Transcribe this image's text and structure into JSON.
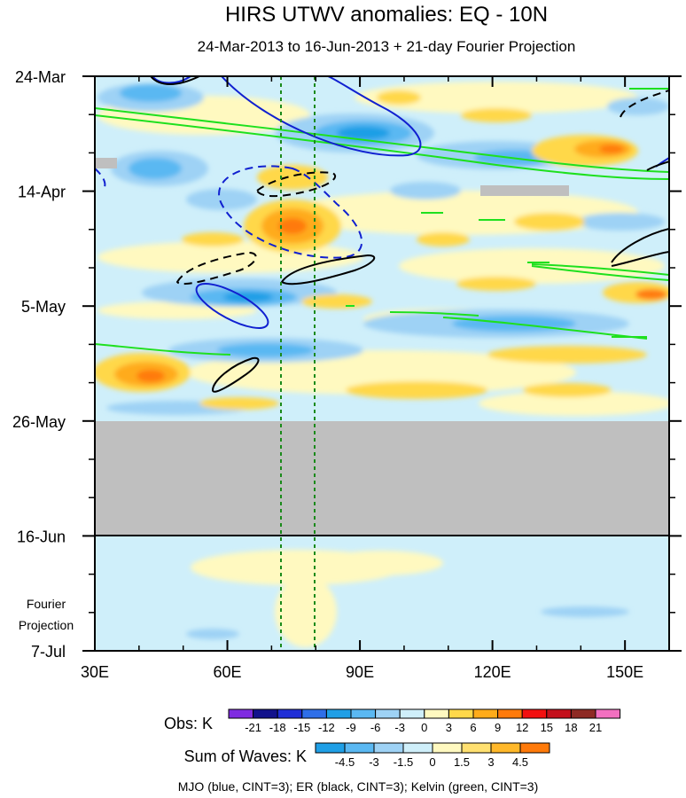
{
  "chart_data": {
    "type": "heatmap",
    "title": "HIRS UTWV anomalies: EQ - 10N",
    "subtitle": "24-Mar-2013 to 16-Jun-2013 + 21-day Fourier Projection",
    "x_ticks": [
      {
        "lon": 30,
        "label": "30E"
      },
      {
        "lon": 60,
        "label": "60E"
      },
      {
        "lon": 90,
        "label": "90E"
      },
      {
        "lon": 120,
        "label": "120E"
      },
      {
        "lon": 150,
        "label": "150E"
      }
    ],
    "xlim": [
      30,
      160
    ],
    "y_ticks": [
      {
        "day": 0,
        "label": "24-Mar"
      },
      {
        "day": 21,
        "label": "14-Apr"
      },
      {
        "day": 42,
        "label": "5-May"
      },
      {
        "day": 63,
        "label": "26-May"
      },
      {
        "day": 84,
        "label": "16-Jun"
      },
      {
        "day": 105,
        "label": "7-Jul"
      }
    ],
    "ylim_days": [
      0,
      105
    ],
    "observation_end_label": "16-Jun",
    "missing_data_days": [
      63,
      84
    ],
    "projection_label_line1": "Fourier",
    "projection_label_line2": "Projection",
    "reference_lines_lon": [
      73,
      80
    ],
    "obs_colorbar": {
      "label": "Obs: K",
      "levels": [
        "-21",
        "-18",
        "-15",
        "-12",
        "-9",
        "-6",
        "-3",
        "0",
        "3",
        "6",
        "9",
        "12",
        "15",
        "18",
        "21"
      ],
      "colors": [
        "#7f2be0",
        "#12128c",
        "#1f2ed6",
        "#2f6fe8",
        "#1f9fe6",
        "#5ab8f2",
        "#9ed2f5",
        "#cfeffa",
        "#fff9c0",
        "#ffd84a",
        "#ffab1a",
        "#ff7a0a",
        "#f21010",
        "#c4101c",
        "#8e2a24",
        "#f270c0"
      ]
    },
    "waves_colorbar": {
      "label": "Sum of Waves: K",
      "levels": [
        "-4.5",
        "-3",
        "-1.5",
        "0",
        "1.5",
        "3",
        "4.5"
      ],
      "colors": [
        "#1f9fe6",
        "#5ab8f2",
        "#9ed2f5",
        "#cfeffa",
        "#fff9c0",
        "#ffe070",
        "#ffb82a",
        "#ff7a0a"
      ]
    },
    "contour_note": "MJO (blue, CINT=3); ER (black, CINT=3); Kelvin (green, CINT=3)",
    "colors": {
      "mjo": "#1020d0",
      "er": "#000000",
      "kelvin": "#1ee01e",
      "missing": "#bfbfbf",
      "reference": "#1a8a1a"
    }
  }
}
